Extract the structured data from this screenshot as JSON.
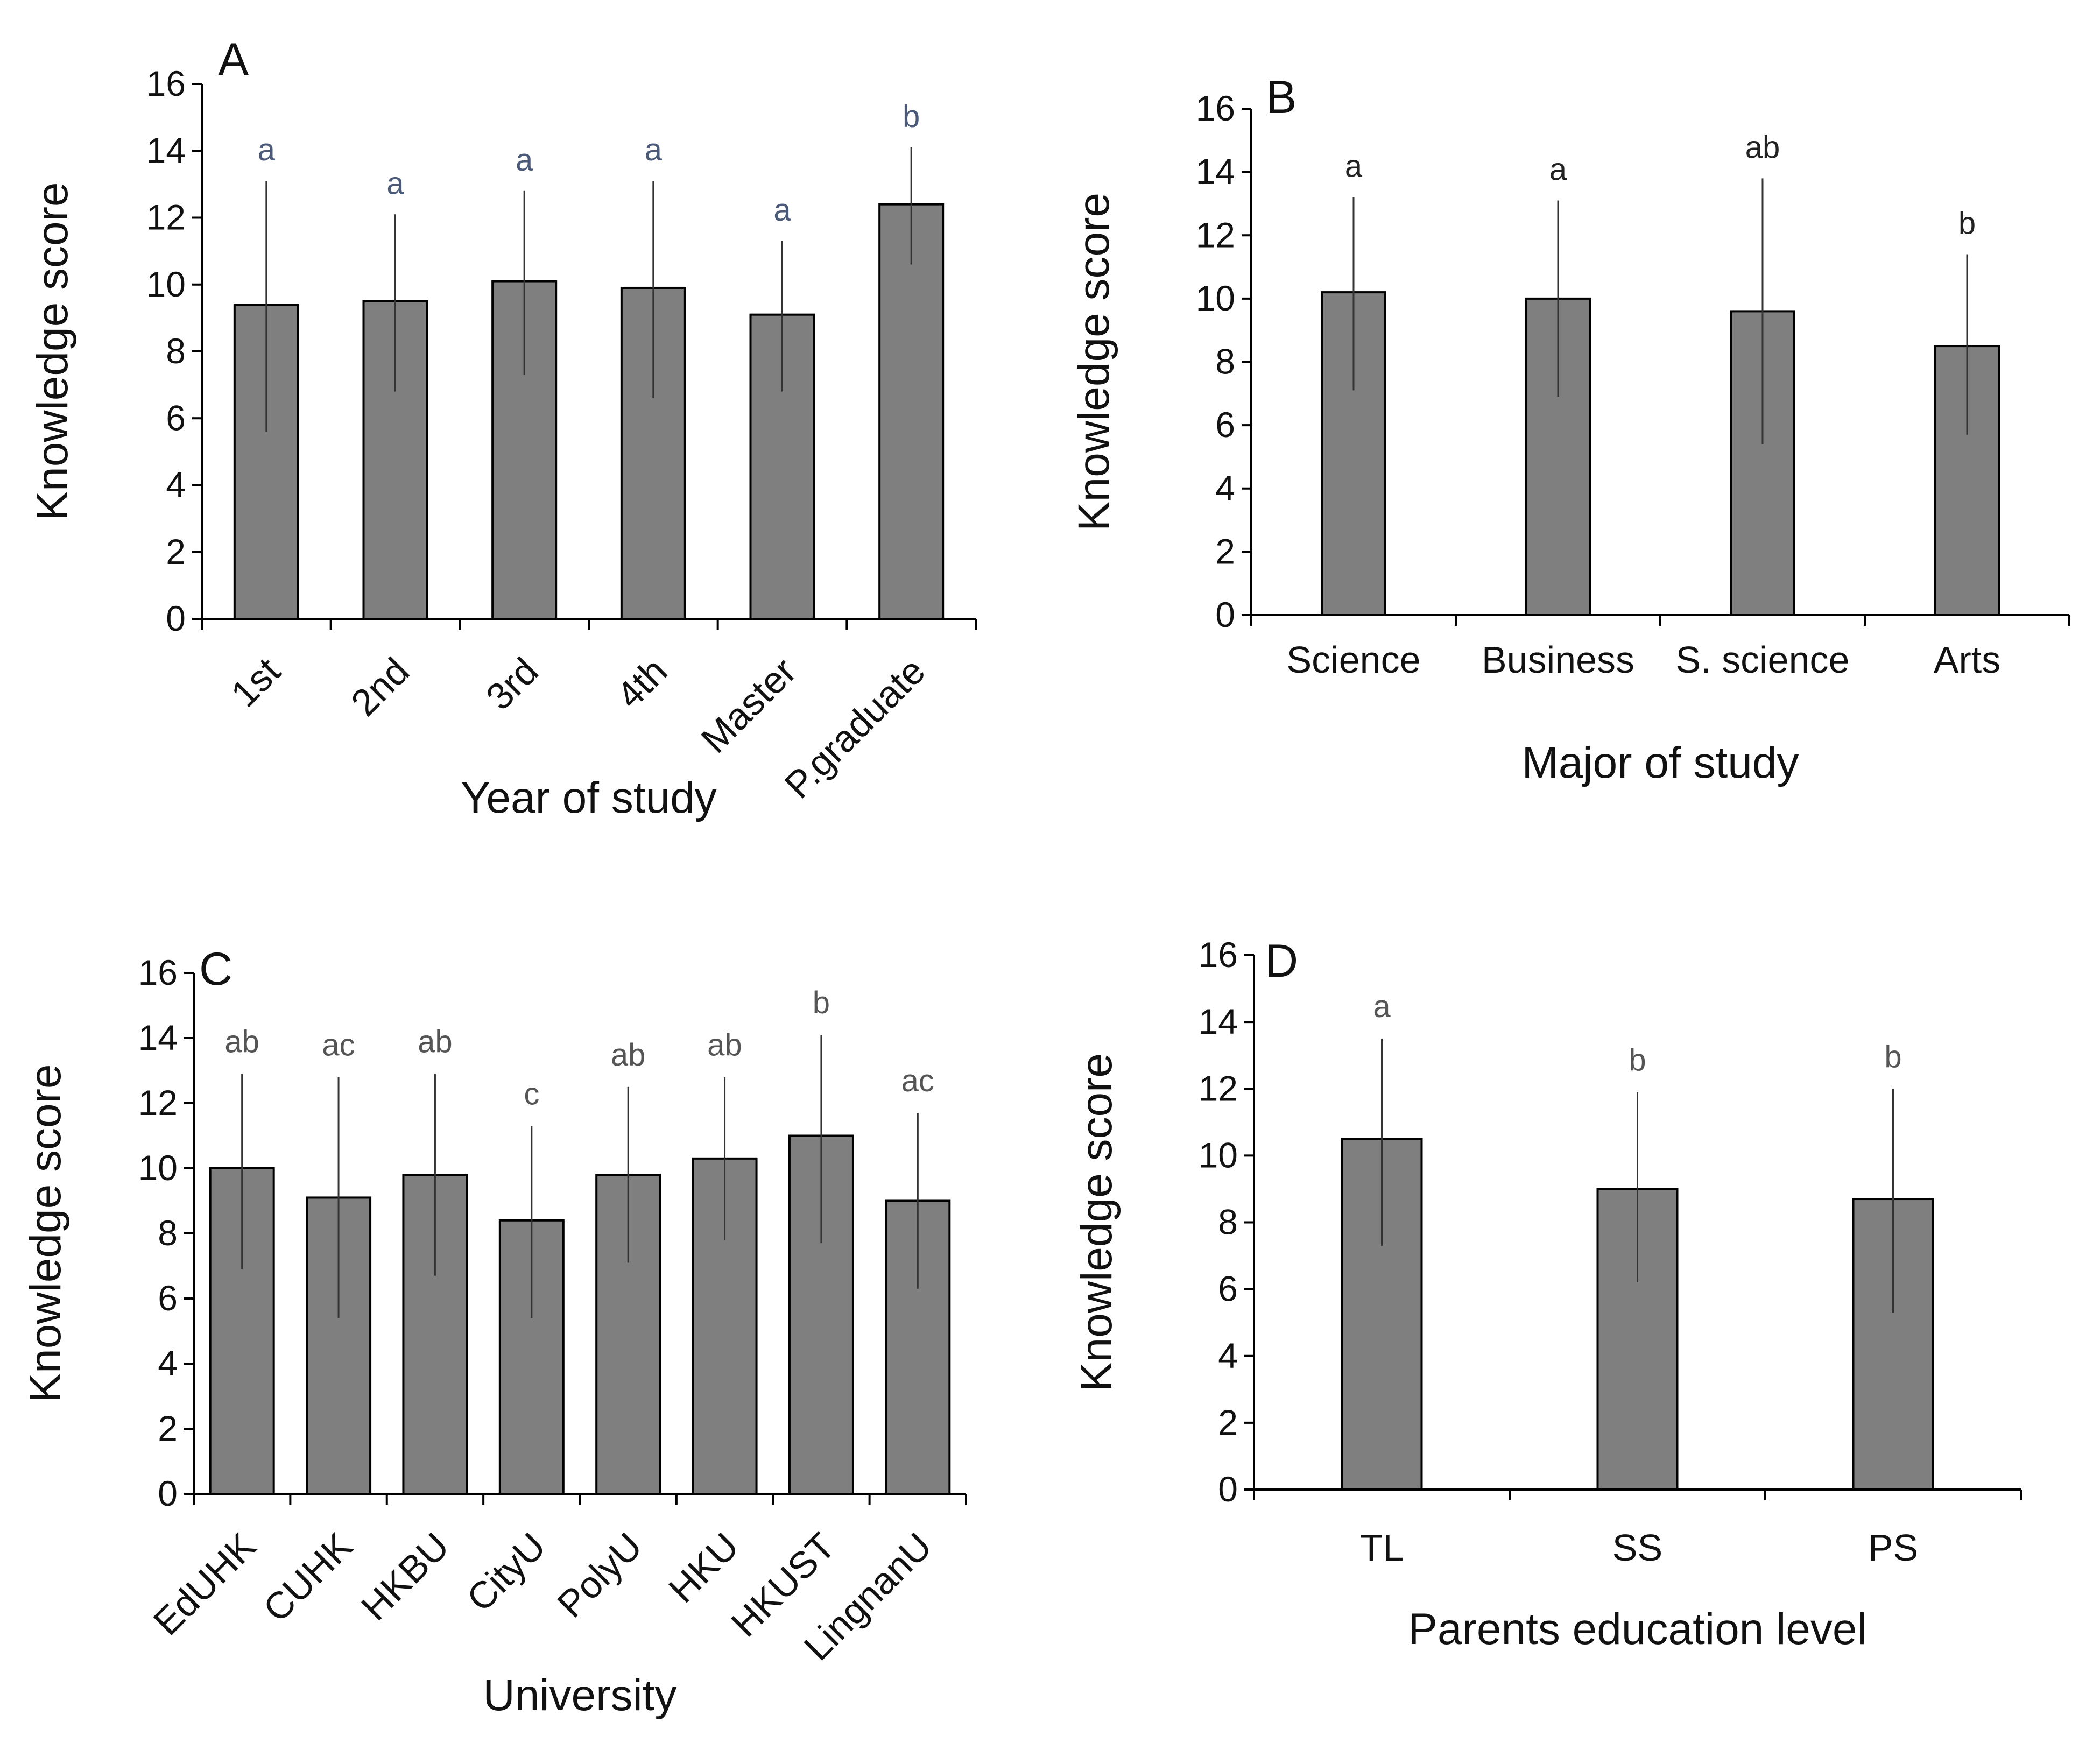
{
  "chart_data": [
    {
      "type": "bar",
      "panel": "A",
      "xlabel": "Year of study",
      "ylabel": "Knowledge score",
      "ylim": [
        0,
        16
      ],
      "yticks": [
        0,
        2,
        4,
        6,
        8,
        10,
        12,
        14,
        16
      ],
      "categories": [
        "1st",
        "2nd",
        "3rd",
        "4th",
        "Master",
        "P.graduate"
      ],
      "values": [
        9.4,
        9.5,
        10.1,
        9.9,
        9.1,
        12.4
      ],
      "error_upper": [
        13.1,
        12.1,
        12.8,
        13.1,
        11.3,
        14.1
      ],
      "error_lower": [
        5.6,
        6.8,
        7.3,
        6.6,
        6.8,
        10.6
      ],
      "significance": [
        "a",
        "a",
        "a",
        "a",
        "a",
        "b"
      ],
      "bar_color": "#7f7f7f",
      "significance_color": "#4a5a78",
      "rotated_tick_labels": true
    },
    {
      "type": "bar",
      "panel": "B",
      "xlabel": "Major of study",
      "ylabel": "Knowledge score",
      "ylim": [
        0,
        16
      ],
      "yticks": [
        0,
        2,
        4,
        6,
        8,
        10,
        12,
        14,
        16
      ],
      "categories": [
        "Science",
        "Business",
        "S. science",
        "Arts"
      ],
      "values": [
        10.2,
        10.0,
        9.6,
        8.5
      ],
      "error_upper": [
        13.2,
        13.1,
        13.8,
        11.4
      ],
      "error_lower": [
        7.1,
        6.9,
        5.4,
        5.7
      ],
      "significance": [
        "a",
        "a",
        "ab",
        "b"
      ],
      "bar_color": "#7f7f7f",
      "significance_color": "#222222",
      "rotated_tick_labels": false
    },
    {
      "type": "bar",
      "panel": "C",
      "xlabel": "University",
      "ylabel": "Knowledge score",
      "ylim": [
        0,
        16
      ],
      "yticks": [
        0,
        2,
        4,
        6,
        8,
        10,
        12,
        14,
        16
      ],
      "categories": [
        "EdUHK",
        "CUHK",
        "HKBU",
        "CityU",
        "PolyU",
        "HKU",
        "HKUST",
        "LingnanU"
      ],
      "values": [
        10.0,
        9.1,
        9.8,
        8.4,
        9.8,
        10.3,
        11.0,
        9.0
      ],
      "error_upper": [
        12.9,
        12.8,
        12.9,
        11.3,
        12.5,
        12.8,
        14.1,
        11.7
      ],
      "error_lower": [
        6.9,
        5.4,
        6.7,
        5.4,
        7.1,
        7.8,
        7.7,
        6.3
      ],
      "significance": [
        "ab",
        "ac",
        "ab",
        "c",
        "ab",
        "ab",
        "b",
        "ac"
      ],
      "bar_color": "#7f7f7f",
      "significance_color": "#555555",
      "rotated_tick_labels": true
    },
    {
      "type": "bar",
      "panel": "D",
      "xlabel": "Parents education level",
      "ylabel": "Knowledge score",
      "ylim": [
        0,
        16
      ],
      "yticks": [
        0,
        2,
        4,
        6,
        8,
        10,
        12,
        14,
        16
      ],
      "categories": [
        "TL",
        "SS",
        "PS"
      ],
      "values": [
        10.5,
        9.0,
        8.7
      ],
      "error_upper": [
        13.5,
        11.9,
        12.0
      ],
      "error_lower": [
        7.3,
        6.2,
        5.3
      ],
      "significance": [
        "a",
        "b",
        "b"
      ],
      "bar_color": "#7f7f7f",
      "significance_color": "#555555",
      "rotated_tick_labels": false
    }
  ]
}
